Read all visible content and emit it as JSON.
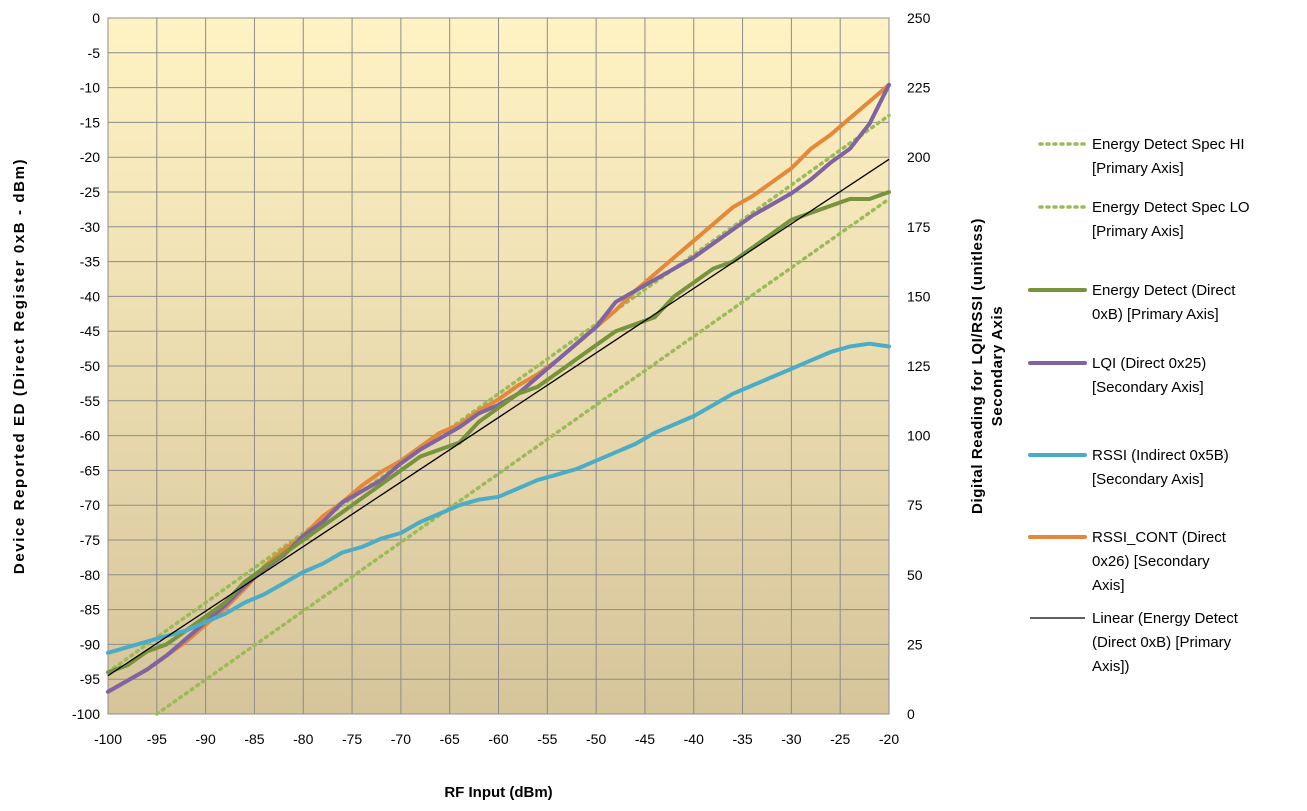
{
  "chart_data": {
    "type": "line",
    "xlabel": "RF Input (dBm)",
    "ylabel_left": "Device Reported ED (Direct Register 0xB - dBm)",
    "ylabel_right_lines": [
      "Digital Reading for LQI/RSSI (unitless)",
      "Secondary Axis"
    ],
    "xlim": [
      -100,
      -20
    ],
    "ylim_left": [
      -100,
      0
    ],
    "ylim_right": [
      0,
      250
    ],
    "x_ticks": [
      "-100",
      "-95",
      "-90",
      "-85",
      "-80",
      "-75",
      "-70",
      "-65",
      "-60",
      "-55",
      "-50",
      "-45",
      "-40",
      "-35",
      "-30",
      "-25",
      "-20"
    ],
    "y_left_ticks": [
      "0",
      "-5",
      "-10",
      "-15",
      "-20",
      "-25",
      "-30",
      "-35",
      "-40",
      "-45",
      "-50",
      "-55",
      "-60",
      "-65",
      "-70",
      "-75",
      "-80",
      "-85",
      "-90",
      "-95",
      "-100"
    ],
    "y_right_ticks": [
      "250",
      "225",
      "200",
      "175",
      "150",
      "125",
      "100",
      "75",
      "50",
      "25",
      "0"
    ],
    "grid": true,
    "legend_position": "right",
    "series": [
      {
        "name": "Energy Detect Spec HI [Primary Axis]",
        "legend_lines": [
          "Energy Detect Spec HI",
          "[Primary Axis]"
        ],
        "axis": "left",
        "color": "#9BBB59",
        "style": "dotted",
        "x": [
          -100,
          -20
        ],
        "y": [
          -94,
          -14
        ]
      },
      {
        "name": "Energy Detect Spec LO [Primary Axis]",
        "legend_lines": [
          "Energy Detect Spec LO",
          "[Primary Axis]"
        ],
        "axis": "left",
        "color": "#9BBB59",
        "style": "dotted",
        "x": [
          -95,
          -20
        ],
        "y": [
          -100,
          -26
        ]
      },
      {
        "name": "Energy Detect (Direct 0xB) [Primary Axis]",
        "legend_lines": [
          "Energy Detect (Direct",
          "0xB) [Primary Axis]"
        ],
        "axis": "left",
        "color": "#77933C",
        "style": "solid",
        "x": [
          -100,
          -98,
          -96,
          -94,
          -92,
          -90,
          -88,
          -86,
          -84,
          -82,
          -80,
          -78,
          -76,
          -74,
          -72,
          -70,
          -68,
          -66,
          -64,
          -62,
          -60,
          -58,
          -56,
          -54,
          -52,
          -50,
          -48,
          -46,
          -44,
          -42,
          -40,
          -38,
          -36,
          -34,
          -32,
          -30,
          -28,
          -26,
          -24,
          -22,
          -20
        ],
        "y": [
          -94,
          -93,
          -91,
          -90,
          -88,
          -86,
          -84,
          -81,
          -79,
          -77,
          -75,
          -73,
          -71,
          -69,
          -67,
          -65,
          -63,
          -62,
          -61,
          -58,
          -56,
          -54,
          -53,
          -51,
          -49,
          -47,
          -45,
          -44,
          -43,
          -40,
          -38,
          -36,
          -35,
          -33,
          -31,
          -29,
          -28,
          -27,
          -26,
          -26,
          -25
        ]
      },
      {
        "name": "LQI (Direct 0x25) [Secondary Axis]",
        "legend_lines": [
          "LQI (Direct 0x25)",
          "[Secondary Axis]"
        ],
        "axis": "right",
        "color": "#7F63A2",
        "style": "solid",
        "x": [
          -100,
          -98,
          -96,
          -94,
          -92,
          -90,
          -88,
          -86,
          -84,
          -82,
          -80,
          -78,
          -76,
          -74,
          -72,
          -70,
          -68,
          -66,
          -64,
          -62,
          -60,
          -58,
          -56,
          -54,
          -52,
          -50,
          -48,
          -46,
          -44,
          -42,
          -40,
          -38,
          -36,
          -34,
          -32,
          -30,
          -28,
          -26,
          -24,
          -22,
          -20
        ],
        "y": [
          8,
          12,
          16,
          21,
          27,
          33,
          39,
          46,
          52,
          57,
          64,
          69,
          76,
          80,
          84,
          90,
          95,
          99,
          103,
          108,
          111,
          115,
          121,
          127,
          133,
          139,
          148,
          152,
          156,
          160,
          164,
          169,
          174,
          179,
          183,
          187,
          192,
          198,
          203,
          212,
          226
        ]
      },
      {
        "name": "RSSI (Indirect 0x5B) [Secondary Axis]",
        "legend_lines": [
          "RSSI (Indirect 0x5B)",
          "[Secondary Axis]"
        ],
        "axis": "right",
        "color": "#4BACC6",
        "style": "solid",
        "x": [
          -100,
          -98,
          -96,
          -94,
          -92,
          -90,
          -88,
          -86,
          -84,
          -82,
          -80,
          -78,
          -76,
          -74,
          -72,
          -70,
          -68,
          -66,
          -64,
          -62,
          -60,
          -58,
          -56,
          -54,
          -52,
          -50,
          -48,
          -46,
          -44,
          -42,
          -40,
          -38,
          -36,
          -34,
          -32,
          -30,
          -28,
          -26,
          -24,
          -22,
          -20
        ],
        "y": [
          22,
          24,
          26,
          28,
          30,
          33,
          36,
          40,
          43,
          47,
          51,
          54,
          58,
          60,
          63,
          65,
          69,
          72,
          75,
          77,
          78,
          81,
          84,
          86,
          88,
          91,
          94,
          97,
          101,
          104,
          107,
          111,
          115,
          118,
          121,
          124,
          127,
          130,
          132,
          133,
          132
        ]
      },
      {
        "name": "RSSI_CONT (Direct 0x26) [Secondary Axis]",
        "legend_lines": [
          "RSSI_CONT (Direct",
          "0x26)  [Secondary",
          "Axis]"
        ],
        "axis": "right",
        "color": "#E4883A",
        "style": "solid",
        "x": [
          -100,
          -98,
          -96,
          -94,
          -92,
          -90,
          -88,
          -86,
          -84,
          -82,
          -80,
          -78,
          -76,
          -74,
          -72,
          -70,
          -68,
          -66,
          -64,
          -62,
          -60,
          -58,
          -56,
          -54,
          -52,
          -50,
          -48,
          -46,
          -44,
          -42,
          -40,
          -38,
          -36,
          -34,
          -32,
          -30,
          -28,
          -26,
          -24,
          -22,
          -20
        ],
        "y": [
          8,
          12,
          16,
          21,
          26,
          32,
          38,
          45,
          53,
          59,
          64,
          71,
          76,
          82,
          87,
          91,
          96,
          101,
          104,
          109,
          113,
          118,
          122,
          127,
          133,
          139,
          145,
          152,
          158,
          164,
          170,
          176,
          182,
          186,
          191,
          196,
          203,
          208,
          214,
          220,
          226
        ]
      },
      {
        "name": "Linear (Energy Detect (Direct 0xB) [Primary Axis])",
        "legend_lines": [
          "Linear (Energy Detect",
          "(Direct 0xB) [Primary",
          "Axis])"
        ],
        "axis": "left",
        "color": "#000000",
        "style": "thin",
        "x": [
          -100,
          -20
        ],
        "y": [
          -94.5,
          -20.3
        ]
      }
    ]
  }
}
